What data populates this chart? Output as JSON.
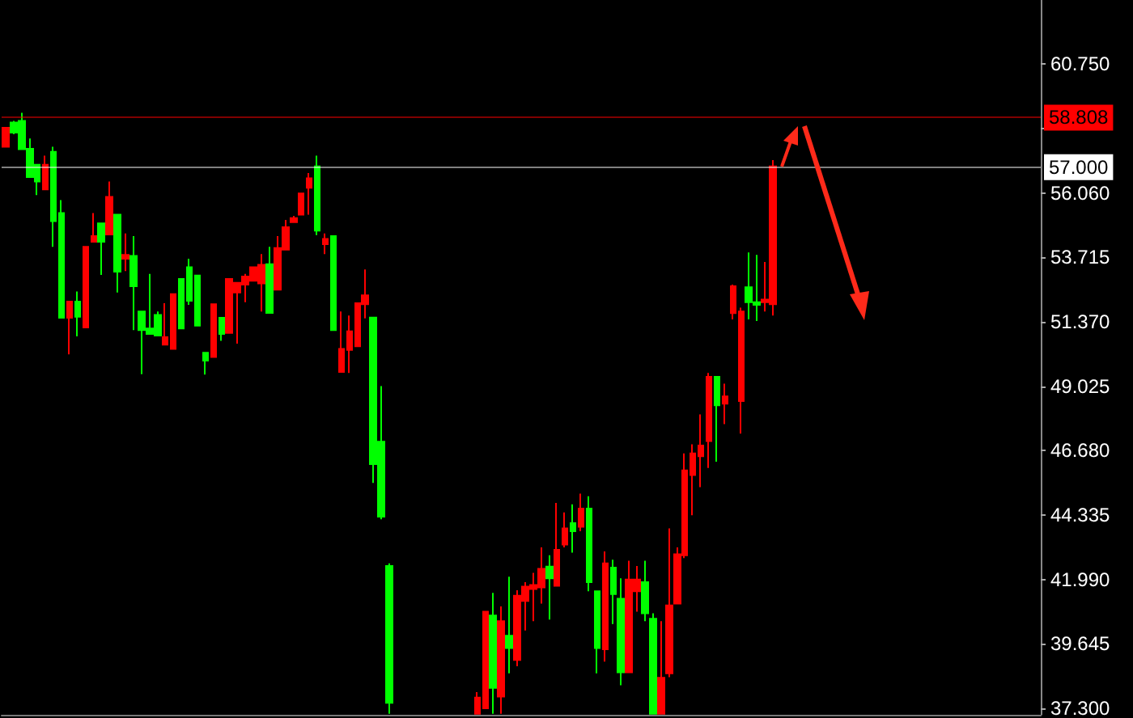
{
  "chart_data": {
    "type": "candlestick",
    "categories": [
      null,
      null,
      null,
      null,
      null,
      null,
      null,
      null,
      null,
      null,
      null,
      null,
      null,
      null,
      null,
      null,
      null,
      null,
      null,
      null,
      null,
      null,
      null,
      null,
      null,
      null,
      null,
      null,
      null,
      null,
      null,
      null,
      null,
      null,
      null,
      null,
      null,
      null,
      null,
      null,
      null,
      null,
      null,
      null,
      null,
      null,
      null,
      null,
      null,
      null,
      null,
      null,
      null,
      null,
      null,
      null,
      null,
      null,
      null,
      null,
      null,
      null,
      null,
      null,
      null,
      null,
      null,
      null,
      null,
      null,
      null,
      null,
      null,
      null,
      null,
      null,
      null,
      null,
      null,
      null,
      null,
      null,
      null,
      null,
      null,
      null,
      null,
      null,
      null,
      null,
      null,
      null,
      null,
      null,
      null,
      null,
      null,
      null,
      null,
      null,
      null,
      null,
      null,
      null,
      null,
      null,
      null,
      null,
      null,
      null,
      null,
      null,
      null,
      null,
      null,
      null,
      null,
      null,
      null,
      null,
      null,
      null,
      null,
      null,
      null,
      null,
      null,
      null,
      null,
      null
    ],
    "ohlc": [
      [
        57.75,
        58.44,
        57.75,
        58.44
      ],
      [
        58.63,
        58.69,
        58.2,
        58.26
      ],
      [
        58.69,
        58.98,
        57.65,
        57.66
      ],
      [
        57.67,
        58.05,
        56.64,
        56.64
      ],
      [
        57.09,
        57.09,
        55.99,
        56.48
      ],
      [
        56.19,
        57.42,
        56.19,
        57.09
      ],
      [
        57.56,
        57.75,
        54.1,
        55.04
      ],
      [
        55.33,
        55.8,
        51.52,
        51.52
      ],
      [
        51.52,
        52.11,
        50.19,
        52.11
      ],
      [
        52.11,
        52.48,
        50.84,
        51.56
      ],
      [
        51.17,
        54.1,
        51.17,
        54.1
      ],
      [
        54.29,
        55.33,
        54.29,
        54.49
      ],
      [
        54.96,
        54.96,
        53.08,
        54.29
      ],
      [
        54.55,
        56.48,
        54.55,
        55.92
      ],
      [
        55.27,
        55.27,
        52.44,
        53.2
      ],
      [
        53.67,
        54.59,
        53.22,
        53.81
      ],
      [
        53.77,
        54.49,
        51.07,
        52.67
      ],
      [
        51.75,
        51.75,
        49.47,
        51.07
      ],
      [
        51.13,
        53.12,
        50.93,
        50.93
      ],
      [
        51.62,
        51.75,
        50.87,
        50.87
      ],
      [
        50.54,
        52.05,
        50.54,
        50.81
      ],
      [
        50.39,
        52.38,
        50.39,
        52.38
      ],
      [
        52.93,
        52.93,
        51.13,
        51.13
      ],
      [
        53.36,
        53.67,
        51.99,
        52.14
      ],
      [
        53.06,
        53.06,
        51.23,
        51.23
      ],
      [
        50.25,
        50.25,
        49.45,
        49.96
      ],
      [
        50.09,
        52.01,
        50.09,
        52.01
      ],
      [
        51.52,
        51.52,
        50.68,
        50.93
      ],
      [
        50.97,
        52.93,
        50.97,
        52.93
      ],
      [
        52.44,
        52.79,
        50.58,
        52.79
      ],
      [
        52.73,
        53.12,
        52.09,
        53.02
      ],
      [
        52.87,
        53.36,
        52.87,
        53.36
      ],
      [
        52.77,
        53.84,
        51.75,
        53.45
      ],
      [
        53.47,
        54.1,
        51.7,
        51.7
      ],
      [
        52.54,
        54.49,
        52.54,
        54.06
      ],
      [
        54.0,
        55.08,
        54.0,
        54.82
      ],
      [
        55.0,
        55.23,
        55.0,
        55.15
      ],
      [
        55.27,
        56.05,
        55.27,
        56.05
      ],
      [
        56.25,
        56.79,
        55.27,
        56.6
      ],
      [
        57.03,
        57.42,
        54.53,
        54.69
      ],
      [
        54.2,
        54.59,
        53.84,
        54.39
      ],
      [
        54.49,
        54.49,
        51.07,
        51.07
      ],
      [
        49.55,
        51.75,
        49.55,
        50.39
      ],
      [
        50.35,
        51.6,
        49.51,
        51.03
      ],
      [
        50.48,
        52.05,
        50.48,
        52.05
      ],
      [
        52.01,
        53.28,
        51.5,
        52.34
      ],
      [
        51.53,
        51.53,
        45.51,
        46.19
      ],
      [
        47.01,
        49.03,
        44.18,
        44.28
      ],
      [
        42.48,
        42.58,
        37.1,
        37.5
      ],
      null,
      null,
      null,
      null,
      null,
      null,
      null,
      null,
      null,
      null,
      [
        37.1,
        37.89,
        37.1,
        37.69
      ],
      [
        37.3,
        40.82,
        37.3,
        40.82
      ],
      [
        40.68,
        41.5,
        37.1,
        38.04
      ],
      [
        37.73,
        41.01,
        37.1,
        40.47
      ],
      [
        39.94,
        42.09,
        38.57,
        39.49
      ],
      [
        39.06,
        41.6,
        38.83,
        41.4
      ],
      [
        41.21,
        41.89,
        40.13,
        41.73
      ],
      [
        41.64,
        42.23,
        40.47,
        41.79
      ],
      [
        41.7,
        43.16,
        41.11,
        42.38
      ],
      [
        42.46,
        42.87,
        40.53,
        42.03
      ],
      [
        41.76,
        44.78,
        41.76,
        43.07
      ],
      [
        43.26,
        44.43,
        43.16,
        43.85
      ],
      [
        44.04,
        44.73,
        42.97,
        43.75
      ],
      [
        43.91,
        45.12,
        43.75,
        44.57
      ],
      [
        44.57,
        45.02,
        41.56,
        41.89
      ],
      [
        41.56,
        41.56,
        38.57,
        39.49
      ],
      [
        39.45,
        43.01,
        39.0,
        42.58
      ],
      [
        42.42,
        42.71,
        40.37,
        41.46
      ],
      [
        41.29,
        42.03,
        38.14,
        38.61
      ],
      [
        38.61,
        42.67,
        38.61,
        41.99
      ],
      [
        41.56,
        42.48,
        40.82,
        41.99
      ],
      [
        41.89,
        42.67,
        40.47,
        40.76
      ],
      [
        40.56,
        40.76,
        37.1,
        37.1
      ],
      [
        37.1,
        40.47,
        37.1,
        38.41
      ],
      [
        38.57,
        43.85,
        38.43,
        41.05
      ],
      [
        41.11,
        43.16,
        41.11,
        42.91
      ],
      [
        42.87,
        46.58,
        42.77,
        45.96
      ],
      [
        45.79,
        46.91,
        44.33,
        46.58
      ],
      [
        46.48,
        48.0,
        45.35,
        46.87
      ],
      [
        47.03,
        49.51,
        46.05,
        49.37
      ],
      [
        49.37,
        49.37,
        46.28,
        48.33
      ],
      [
        48.39,
        49.12,
        47.65,
        48.66
      ],
      [
        51.69,
        52.73,
        51.46,
        52.67
      ],
      [
        48.49,
        51.89,
        47.3,
        51.75
      ],
      [
        52.63,
        53.9,
        51.46,
        52.09
      ],
      [
        52.09,
        53.81,
        51.4,
        51.99
      ],
      [
        52.09,
        53.55,
        51.75,
        52.18
      ],
      [
        52.01,
        57.26,
        51.6,
        57.03
      ],
      null,
      null,
      null,
      null,
      null,
      null,
      null,
      null,
      null,
      null,
      null,
      null,
      null,
      null,
      null,
      null,
      null,
      null,
      null,
      null,
      null,
      null,
      null,
      null,
      null,
      null,
      null,
      null,
      null,
      null,
      null,
      null,
      null
    ],
    "colors": [
      "#ff0000",
      "#00ff00",
      "#00ff00",
      "#00ff00",
      "#00ff00",
      "#ff0000",
      "#00ff00",
      "#00ff00",
      "#ff0000",
      "#00ff00",
      "#ff0000",
      "#ff0000",
      "#00ff00",
      "#ff0000",
      "#00ff00",
      "#ff0000",
      "#00ff00",
      "#00ff00",
      "#00ff00",
      "#00ff00",
      "#ff0000",
      "#ff0000",
      "#00ff00",
      "#00ff00",
      "#00ff00",
      "#00ff00",
      "#ff0000",
      "#00ff00",
      "#ff0000",
      "#ff0000",
      "#ff0000",
      "#ff0000",
      "#ff0000",
      "#00ff00",
      "#ff0000",
      "#ff0000",
      "#ff0000",
      "#ff0000",
      "#ff0000",
      "#00ff00",
      "#ff0000",
      "#00ff00",
      "#ff0000",
      "#ff0000",
      "#ff0000",
      "#ff0000",
      "#00ff00",
      "#00ff00",
      "#00ff00",
      null,
      null,
      null,
      null,
      null,
      null,
      null,
      null,
      null,
      null,
      "#ff0000",
      "#ff0000",
      "#00ff00",
      "#ff0000",
      "#00ff00",
      "#ff0000",
      "#ff0000",
      "#ff0000",
      "#ff0000",
      "#00ff00",
      "#ff0000",
      "#ff0000",
      "#00ff00",
      "#ff0000",
      "#00ff00",
      "#00ff00",
      "#ff0000",
      "#00ff00",
      "#00ff00",
      "#ff0000",
      "#ff0000",
      "#00ff00",
      "#00ff00",
      "#ff0000",
      "#ff0000",
      "#ff0000",
      "#ff0000",
      "#ff0000",
      "#ff0000",
      "#ff0000",
      "#00ff00",
      "#ff0000",
      "#ff0000",
      "#ff0000",
      "#00ff00",
      "#00ff00",
      "#ff0000",
      "#ff0000",
      null,
      null,
      null,
      null,
      null,
      null,
      null,
      null,
      null,
      null,
      null,
      null,
      null,
      null,
      null,
      null,
      null,
      null,
      null,
      null,
      null,
      null,
      null,
      null,
      null,
      null,
      null,
      null,
      null,
      null,
      null,
      null,
      null
    ],
    "ylim": [
      37.07,
      63.09
    ],
    "yticks": [
      {
        "value": 37.3,
        "label": "37.300"
      },
      {
        "value": 39.645,
        "label": "39.645"
      },
      {
        "value": 41.99,
        "label": "41.990"
      },
      {
        "value": 44.335,
        "label": "44.335"
      },
      {
        "value": 46.68,
        "label": "46.680"
      },
      {
        "value": 49.025,
        "label": "49.025"
      },
      {
        "value": 51.37,
        "label": "51.370"
      },
      {
        "value": 53.715,
        "label": "53.715"
      },
      {
        "value": 56.06,
        "label": "56.060"
      },
      {
        "value": 58.405,
        "label": null
      },
      {
        "value": 60.75,
        "label": "60.750"
      }
    ],
    "ref_lines": [
      {
        "axis": "y",
        "value": 58.808,
        "label": "58.808",
        "color": "#ff0000"
      },
      {
        "axis": "y",
        "value": 57.0,
        "label": "57.000",
        "color": "#ffffff"
      }
    ],
    "tick_labels": "y",
    "grid": false
  }
}
